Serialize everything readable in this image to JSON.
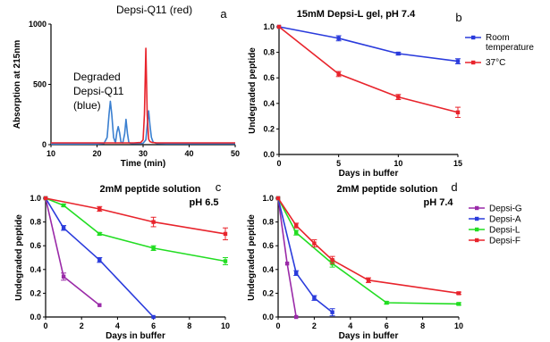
{
  "chart_data": [
    {
      "id": "a",
      "type": "line",
      "panel_label": "a",
      "xlabel": "Time (min)",
      "ylabel": "Absorption at 215nm",
      "xlim": [
        10,
        50
      ],
      "ylim": [
        0,
        1000
      ],
      "xticks": [
        10,
        20,
        30,
        40,
        50
      ],
      "yticks": [
        0,
        500,
        1000
      ],
      "annotations": [
        "Depsi-Q11 (red)",
        "Degraded",
        "Depsi-Q11",
        "(blue)"
      ],
      "series": [
        {
          "color": "#3a7fd0",
          "x": [
            10,
            20,
            21.5,
            22.2,
            22.6,
            22.9,
            23.2,
            23.6,
            24.0,
            24.3,
            24.6,
            24.9,
            25.2,
            25.6,
            26.0,
            26.3,
            26.6,
            26.9,
            27.2,
            27.6,
            30.0,
            30.6,
            30.9,
            31.2,
            31.5,
            31.8,
            32.2,
            33,
            35,
            40,
            45,
            50
          ],
          "y": [
            5,
            6,
            10,
            60,
            250,
            360,
            250,
            60,
            15,
            100,
            150,
            100,
            20,
            15,
            90,
            210,
            95,
            20,
            12,
            10,
            12,
            40,
            160,
            280,
            160,
            60,
            20,
            10,
            8,
            8,
            8,
            8
          ]
        },
        {
          "color": "#e8242c",
          "x": [
            10,
            20,
            25,
            28,
            29.5,
            30.0,
            30.3,
            30.6,
            30.9,
            31.2,
            31.5,
            32.0,
            33,
            35,
            40,
            45,
            50
          ],
          "y": [
            15,
            15,
            15,
            15,
            18,
            40,
            250,
            800,
            250,
            45,
            25,
            18,
            15,
            15,
            15,
            15,
            15
          ]
        }
      ]
    },
    {
      "id": "b",
      "type": "line",
      "panel_label": "b",
      "title": "15mM Depsi-L gel, pH 7.4",
      "xlabel": "Days in buffer",
      "ylabel": "Undegraded peptide",
      "xlim": [
        0,
        15
      ],
      "ylim": [
        0,
        1.0
      ],
      "xticks": [
        0,
        5,
        10,
        15
      ],
      "yticks": [
        0.0,
        0.2,
        0.4,
        0.6,
        0.8,
        1.0
      ],
      "legend": "right",
      "series": [
        {
          "name": "Room temperature",
          "name_lines": [
            "Room",
            "temperature"
          ],
          "color": "#2a3bdc",
          "x": [
            0,
            5,
            10,
            15
          ],
          "y": [
            1.0,
            0.91,
            0.79,
            0.73
          ],
          "err": [
            0,
            0.02,
            0.01,
            0.02
          ]
        },
        {
          "name": "37°C",
          "name_lines": [
            "37°C"
          ],
          "color": "#e8242c",
          "x": [
            0,
            5,
            10,
            15
          ],
          "y": [
            1.0,
            0.63,
            0.45,
            0.33
          ],
          "err": [
            0,
            0.02,
            0.02,
            0.04
          ]
        }
      ]
    },
    {
      "id": "c",
      "type": "line",
      "panel_label": "c",
      "title": "2mM peptide solution",
      "subtitle": "pH 6.5",
      "xlabel": "Days in buffer",
      "ylabel": "Undegraded peptide",
      "xlim": [
        0,
        10
      ],
      "ylim": [
        0,
        1.0
      ],
      "xticks": [
        0,
        2,
        4,
        6,
        8,
        10
      ],
      "yticks": [
        0.0,
        0.2,
        0.4,
        0.6,
        0.8,
        1.0
      ],
      "series": [
        {
          "name": "Depsi-G",
          "color": "#9a2aa8",
          "x": [
            0,
            1,
            3
          ],
          "y": [
            1.0,
            0.34,
            0.1
          ],
          "err": [
            0,
            0.03,
            0
          ]
        },
        {
          "name": "Depsi-A",
          "color": "#2a3bdc",
          "x": [
            0,
            1,
            3,
            6
          ],
          "y": [
            1.0,
            0.75,
            0.48,
            0.0
          ],
          "err": [
            0,
            0.02,
            0.02,
            0
          ]
        },
        {
          "name": "Depsi-L",
          "color": "#22dd22",
          "x": [
            0,
            1,
            3,
            6,
            10
          ],
          "y": [
            1.0,
            0.94,
            0.7,
            0.58,
            0.47
          ],
          "err": [
            0,
            0.01,
            0.01,
            0.02,
            0.03
          ]
        },
        {
          "name": "Depsi-F",
          "color": "#e8242c",
          "x": [
            0,
            3,
            6,
            10
          ],
          "y": [
            1.0,
            0.91,
            0.8,
            0.7
          ],
          "err": [
            0,
            0.02,
            0.04,
            0.05
          ]
        }
      ]
    },
    {
      "id": "d",
      "type": "line",
      "panel_label": "d",
      "title": "2mM peptide solution",
      "subtitle": "pH 7.4",
      "xlabel": "Days in buffer",
      "ylabel": "Undegraded peptide",
      "xlim": [
        0,
        10
      ],
      "ylim": [
        0,
        1.0
      ],
      "xticks": [
        0,
        2,
        4,
        6,
        8,
        10
      ],
      "yticks": [
        0.0,
        0.2,
        0.4,
        0.6,
        0.8,
        1.0
      ],
      "legend": "right",
      "series": [
        {
          "name": "Depsi-G",
          "color": "#9a2aa8",
          "x": [
            0,
            0.5,
            1
          ],
          "y": [
            1.0,
            0.45,
            0.0
          ],
          "err": [
            0,
            0,
            0
          ]
        },
        {
          "name": "Depsi-A",
          "color": "#2a3bdc",
          "x": [
            0,
            1,
            2,
            3
          ],
          "y": [
            1.0,
            0.37,
            0.16,
            0.04
          ],
          "err": [
            0,
            0.02,
            0.02,
            0.03
          ]
        },
        {
          "name": "Depsi-L",
          "color": "#22dd22",
          "x": [
            0,
            1,
            3,
            6,
            10
          ],
          "y": [
            1.0,
            0.71,
            0.45,
            0.12,
            0.11
          ],
          "err": [
            0,
            0.02,
            0.03,
            0.01,
            0.01
          ]
        },
        {
          "name": "Depsi-F",
          "color": "#e8242c",
          "x": [
            0,
            1,
            2,
            3,
            5,
            10
          ],
          "y": [
            1.0,
            0.77,
            0.62,
            0.48,
            0.31,
            0.2
          ],
          "err": [
            0,
            0.02,
            0.03,
            0.03,
            0.02,
            0.01
          ]
        }
      ]
    }
  ]
}
